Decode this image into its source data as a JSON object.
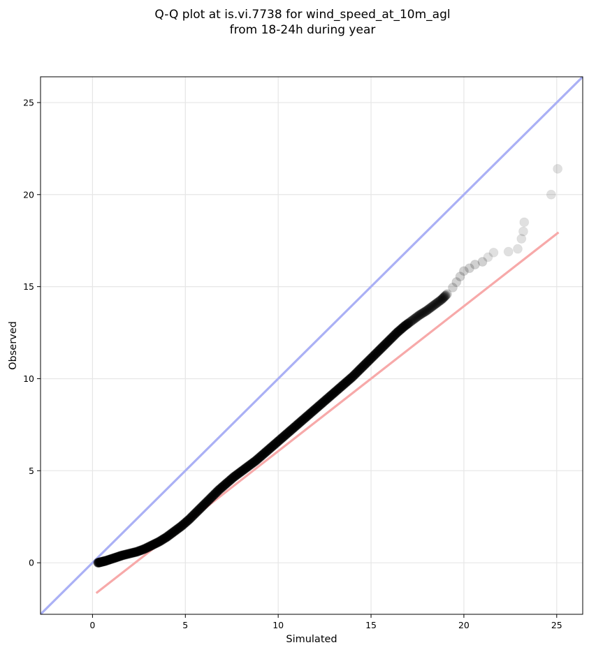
{
  "chart_data": {
    "type": "scatter",
    "title": [
      "Q-Q plot at is.vi.7738 for wind_speed_at_10m_agl",
      "from 18-24h during year"
    ],
    "xlabel": "Simulated",
    "ylabel": "Observed",
    "xlim": [
      -2.8,
      26.4
    ],
    "ylim": [
      -2.8,
      26.4
    ],
    "xticks": [
      0,
      5,
      10,
      15,
      20,
      25
    ],
    "yticks": [
      0,
      5,
      10,
      15,
      20,
      25
    ],
    "grid": true,
    "identity_line": {
      "from": [
        -2.8,
        -2.8
      ],
      "to": [
        26.4,
        26.4
      ],
      "color": "#aab0f5"
    },
    "fit_line": {
      "from": [
        0.2,
        -1.65
      ],
      "to": [
        25.1,
        17.95
      ],
      "color": "#f7a9a9"
    },
    "points_color": "#000000",
    "series": [
      {
        "x": [
          0.3,
          0.5,
          0.7,
          1.0,
          1.3,
          1.6,
          2.0,
          2.4,
          2.8,
          3.2,
          3.6,
          4.0,
          4.4,
          4.8,
          5.2,
          5.6,
          6.0,
          6.4,
          6.8,
          7.2,
          7.6,
          8.0,
          8.4,
          8.8,
          9.2,
          9.6,
          10.0,
          10.4,
          10.8,
          11.2,
          11.6,
          12.0,
          12.4,
          12.8,
          13.2,
          13.6,
          14.0,
          14.4,
          14.8,
          15.2,
          15.6,
          16.0,
          16.4,
          16.8,
          17.2,
          17.6,
          18.0,
          18.4,
          18.8,
          19.1,
          19.4,
          19.6,
          19.8,
          20.0,
          20.3,
          20.6,
          21.0,
          21.3,
          21.6,
          22.4,
          22.9,
          23.1,
          23.2,
          23.25,
          24.7,
          25.05
        ],
        "y": [
          0.0,
          0.05,
          0.1,
          0.2,
          0.3,
          0.4,
          0.5,
          0.6,
          0.75,
          0.95,
          1.15,
          1.4,
          1.7,
          2.0,
          2.35,
          2.75,
          3.15,
          3.55,
          3.95,
          4.3,
          4.65,
          4.95,
          5.25,
          5.55,
          5.9,
          6.25,
          6.6,
          6.95,
          7.3,
          7.65,
          8.0,
          8.35,
          8.7,
          9.05,
          9.4,
          9.75,
          10.1,
          10.5,
          10.9,
          11.3,
          11.7,
          12.1,
          12.5,
          12.85,
          13.15,
          13.45,
          13.7,
          14.0,
          14.3,
          14.6,
          14.95,
          15.25,
          15.55,
          15.85,
          16.0,
          16.2,
          16.35,
          16.6,
          16.85,
          16.9,
          17.05,
          17.6,
          18.0,
          18.5,
          20.0,
          21.4
        ]
      }
    ]
  }
}
